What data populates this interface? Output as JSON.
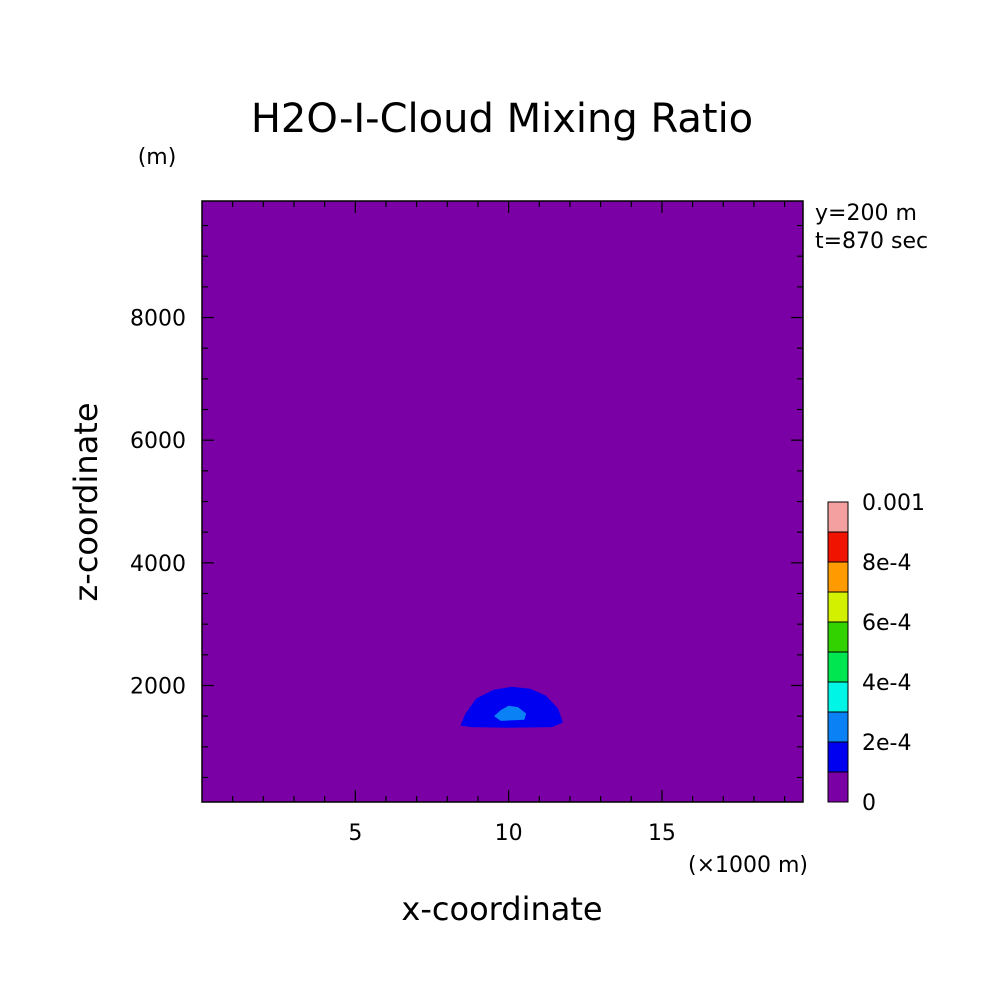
{
  "chart_data": {
    "type": "heatmap",
    "title": "H2O-I-Cloud Mixing Ratio",
    "xlabel": "x-coordinate",
    "ylabel": "z-coordinate",
    "x_unit": "(×1000 m)",
    "y_unit": "(m)",
    "info": [
      "y=200 m",
      "t=870 sec"
    ],
    "xlim": [
      0,
      19.6
    ],
    "ylim": [
      100,
      9900
    ],
    "x_ticks": [
      5,
      10,
      15
    ],
    "y_ticks": [
      2000,
      4000,
      6000,
      8000
    ],
    "x_tick_labels": [
      "5",
      "10",
      "15"
    ],
    "y_tick_labels": [
      "2000",
      "4000",
      "6000",
      "8000"
    ],
    "background_level_color": "#7a00a6",
    "colorbar": {
      "levels": [
        "0",
        "1e-4",
        "2e-4",
        "3e-4",
        "4e-4",
        "5e-4",
        "6e-4",
        "7e-4",
        "8e-4",
        "9e-4",
        "0.001"
      ],
      "labels": [
        {
          "value": "0",
          "text": "0"
        },
        {
          "value": "2e-4",
          "text": "2e-4"
        },
        {
          "value": "4e-4",
          "text": "4e-4"
        },
        {
          "value": "6e-4",
          "text": "6e-4"
        },
        {
          "value": "8e-4",
          "text": "8e-4"
        },
        {
          "value": "0.001",
          "text": "0.001"
        }
      ],
      "colors": [
        "#7a00a6",
        "#0000f0",
        "#0a82f5",
        "#00f5e6",
        "#00e650",
        "#32d200",
        "#d2f000",
        "#ff9b00",
        "#f01400",
        "#f5a0a0"
      ]
    },
    "contours": [
      {
        "level": "1e-4 to 2e-4",
        "color": "#0000f0",
        "points": [
          [
            8.45,
            1350
          ],
          [
            8.6,
            1530
          ],
          [
            8.95,
            1780
          ],
          [
            9.5,
            1920
          ],
          [
            10.1,
            1970
          ],
          [
            10.7,
            1940
          ],
          [
            11.2,
            1830
          ],
          [
            11.6,
            1620
          ],
          [
            11.75,
            1400
          ],
          [
            11.4,
            1330
          ],
          [
            10.0,
            1320
          ],
          [
            8.8,
            1330
          ]
        ]
      },
      {
        "level": "2e-4 to 3e-4",
        "color": "#0a82f5",
        "points": [
          [
            9.55,
            1500
          ],
          [
            9.75,
            1590
          ],
          [
            10.0,
            1660
          ],
          [
            10.3,
            1640
          ],
          [
            10.55,
            1540
          ],
          [
            10.5,
            1450
          ],
          [
            9.75,
            1430
          ]
        ]
      }
    ]
  }
}
